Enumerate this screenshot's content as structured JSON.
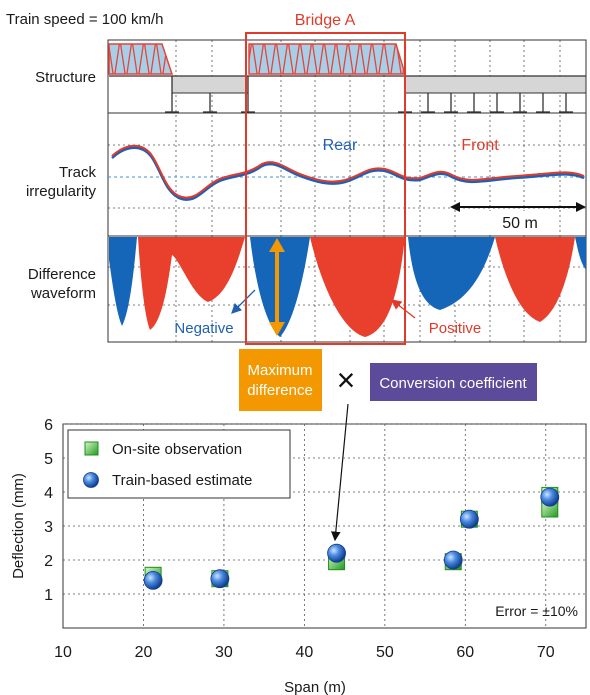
{
  "header": {
    "train_speed": "Train speed = 100 km/h",
    "bridge_label": "Bridge A"
  },
  "row_labels": {
    "structure": "Structure",
    "track_line1": "Track",
    "track_line2": "irregularity",
    "diff_line1": "Difference",
    "diff_line2": "waveform"
  },
  "track_panel": {
    "rear_label": "Rear",
    "front_label": "Front",
    "scale_label": "50 m",
    "series": [
      {
        "name": "Rear",
        "color": "#1f5fb4"
      },
      {
        "name": "Front",
        "color": "#e03b2a"
      }
    ]
  },
  "difference_panel": {
    "negative_label": "Negative",
    "positive_label": "Positive",
    "negative_color": "#1565b8",
    "positive_color": "#e8402c"
  },
  "formula": {
    "max_diff_line1": "Maximum",
    "max_diff_line2": "difference",
    "operator": "×",
    "coefficient": "Conversion coefficient",
    "max_diff_color": "#f39800",
    "coefficient_color": "#5b4b9a"
  },
  "chart_data": {
    "type": "scatter",
    "xlabel": "Span (m)",
    "ylabel": "Deflection (mm)",
    "xlim": [
      10,
      75
    ],
    "ylim": [
      0,
      6
    ],
    "xticks": [
      10,
      20,
      30,
      40,
      50,
      60,
      70
    ],
    "yticks": [
      1,
      2,
      3,
      4,
      5,
      6
    ],
    "grid": true,
    "legend_position": "top-left",
    "annotation": "Error = ±10%",
    "series": [
      {
        "name": "On-site observation",
        "marker": "square",
        "color": "#2ea82e",
        "points": [
          [
            21.2,
            1.55
          ],
          [
            29.5,
            1.45
          ],
          [
            44.0,
            1.95
          ],
          [
            58.5,
            1.95
          ],
          [
            60.5,
            3.2
          ],
          [
            70.5,
            3.9
          ],
          [
            70.5,
            3.5
          ]
        ]
      },
      {
        "name": "Train-based estimate",
        "marker": "circle",
        "color": "#2a6fd0",
        "points": [
          [
            21.2,
            1.4
          ],
          [
            29.5,
            1.45
          ],
          [
            44.0,
            2.2
          ],
          [
            58.5,
            2.0
          ],
          [
            60.5,
            3.2
          ],
          [
            70.5,
            3.85
          ]
        ]
      }
    ]
  }
}
